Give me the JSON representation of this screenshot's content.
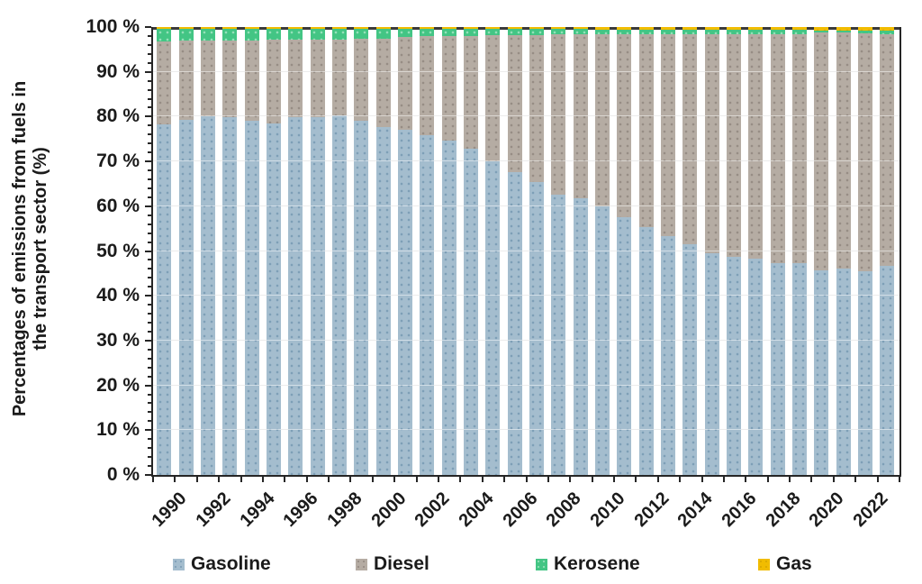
{
  "chart_data": {
    "type": "bar",
    "stacked": true,
    "title": "",
    "ylabel_line1": "Percentages of emissions from fuels in",
    "ylabel_line2": "the transport sector (%)",
    "xlabel": "",
    "ylim": [
      0,
      100
    ],
    "grid": true,
    "legend_position": "bottom",
    "years": [
      1990,
      1991,
      1992,
      1993,
      1994,
      1995,
      1996,
      1997,
      1998,
      1999,
      2000,
      2001,
      2002,
      2003,
      2004,
      2005,
      2006,
      2007,
      2008,
      2009,
      2010,
      2011,
      2012,
      2013,
      2014,
      2015,
      2016,
      2017,
      2018,
      2019,
      2020,
      2021,
      2022,
      2023
    ],
    "x_tick_labels": [
      "1990",
      "1992",
      "1994",
      "1996",
      "1998",
      "2000",
      "2002",
      "2004",
      "2006",
      "2008",
      "2010",
      "2012",
      "2014",
      "2016",
      "2018",
      "2020",
      "2022"
    ],
    "y_tick_labels": [
      "0 %",
      "10 %",
      "20 %",
      "30 %",
      "40 %",
      "50 %",
      "60 %",
      "70 %",
      "80 %",
      "90 %",
      "100 %"
    ],
    "series": [
      {
        "name": "Gasoline",
        "color": "#A4BDCE",
        "dot_color": "#7D9EB6",
        "values": [
          78.2,
          79.3,
          80.0,
          79.8,
          79.0,
          78.4,
          79.8,
          79.8,
          80.3,
          79.0,
          77.6,
          77.0,
          75.8,
          74.6,
          72.8,
          70.0,
          67.6,
          65.4,
          62.6,
          61.8,
          60.0,
          57.6,
          55.3,
          53.3,
          51.5,
          49.4,
          48.7,
          48.3,
          47.2,
          47.2,
          45.6,
          46.0,
          45.4,
          46.6
        ]
      },
      {
        "name": "Diesel",
        "color": "#B5ACA3",
        "dot_color": "#968C84",
        "values": [
          18.6,
          17.6,
          16.9,
          17.2,
          18.0,
          18.7,
          17.3,
          17.4,
          16.9,
          18.3,
          19.7,
          20.8,
          22.1,
          23.4,
          25.2,
          28.1,
          30.5,
          32.8,
          35.7,
          36.6,
          38.3,
          40.7,
          43.1,
          45.1,
          46.9,
          49.0,
          49.7,
          50.1,
          51.2,
          51.2,
          53.2,
          52.7,
          53.1,
          51.8
        ]
      },
      {
        "name": "Kerosene",
        "color": "#43C584",
        "dot_color": "#96E1BA",
        "values": [
          2.9,
          2.8,
          2.8,
          2.7,
          2.7,
          2.6,
          2.6,
          2.5,
          2.5,
          2.4,
          2.3,
          1.8,
          1.7,
          1.6,
          1.6,
          1.5,
          1.5,
          1.4,
          1.3,
          1.2,
          1.2,
          1.2,
          1.1,
          1.1,
          1.1,
          1.0,
          1.0,
          1.0,
          1.0,
          1.0,
          0.5,
          0.6,
          0.8,
          0.9
        ]
      },
      {
        "name": "Gas",
        "color": "#F1BC00",
        "dot_color": "#D9A800",
        "values": [
          0.3,
          0.3,
          0.3,
          0.3,
          0.3,
          0.3,
          0.3,
          0.3,
          0.3,
          0.3,
          0.4,
          0.4,
          0.4,
          0.4,
          0.4,
          0.4,
          0.4,
          0.4,
          0.4,
          0.4,
          0.5,
          0.5,
          0.5,
          0.5,
          0.5,
          0.6,
          0.6,
          0.6,
          0.6,
          0.6,
          0.7,
          0.7,
          0.7,
          0.7
        ]
      }
    ],
    "colors": {
      "grid": "#D9D9D9",
      "axis": "#262626",
      "top_line": "#3a3a3a",
      "text": "#1b1b1b"
    }
  },
  "legend": {
    "items": [
      {
        "label": "Gasoline"
      },
      {
        "label": "Diesel"
      },
      {
        "label": "Kerosene"
      },
      {
        "label": "Gas"
      }
    ]
  }
}
